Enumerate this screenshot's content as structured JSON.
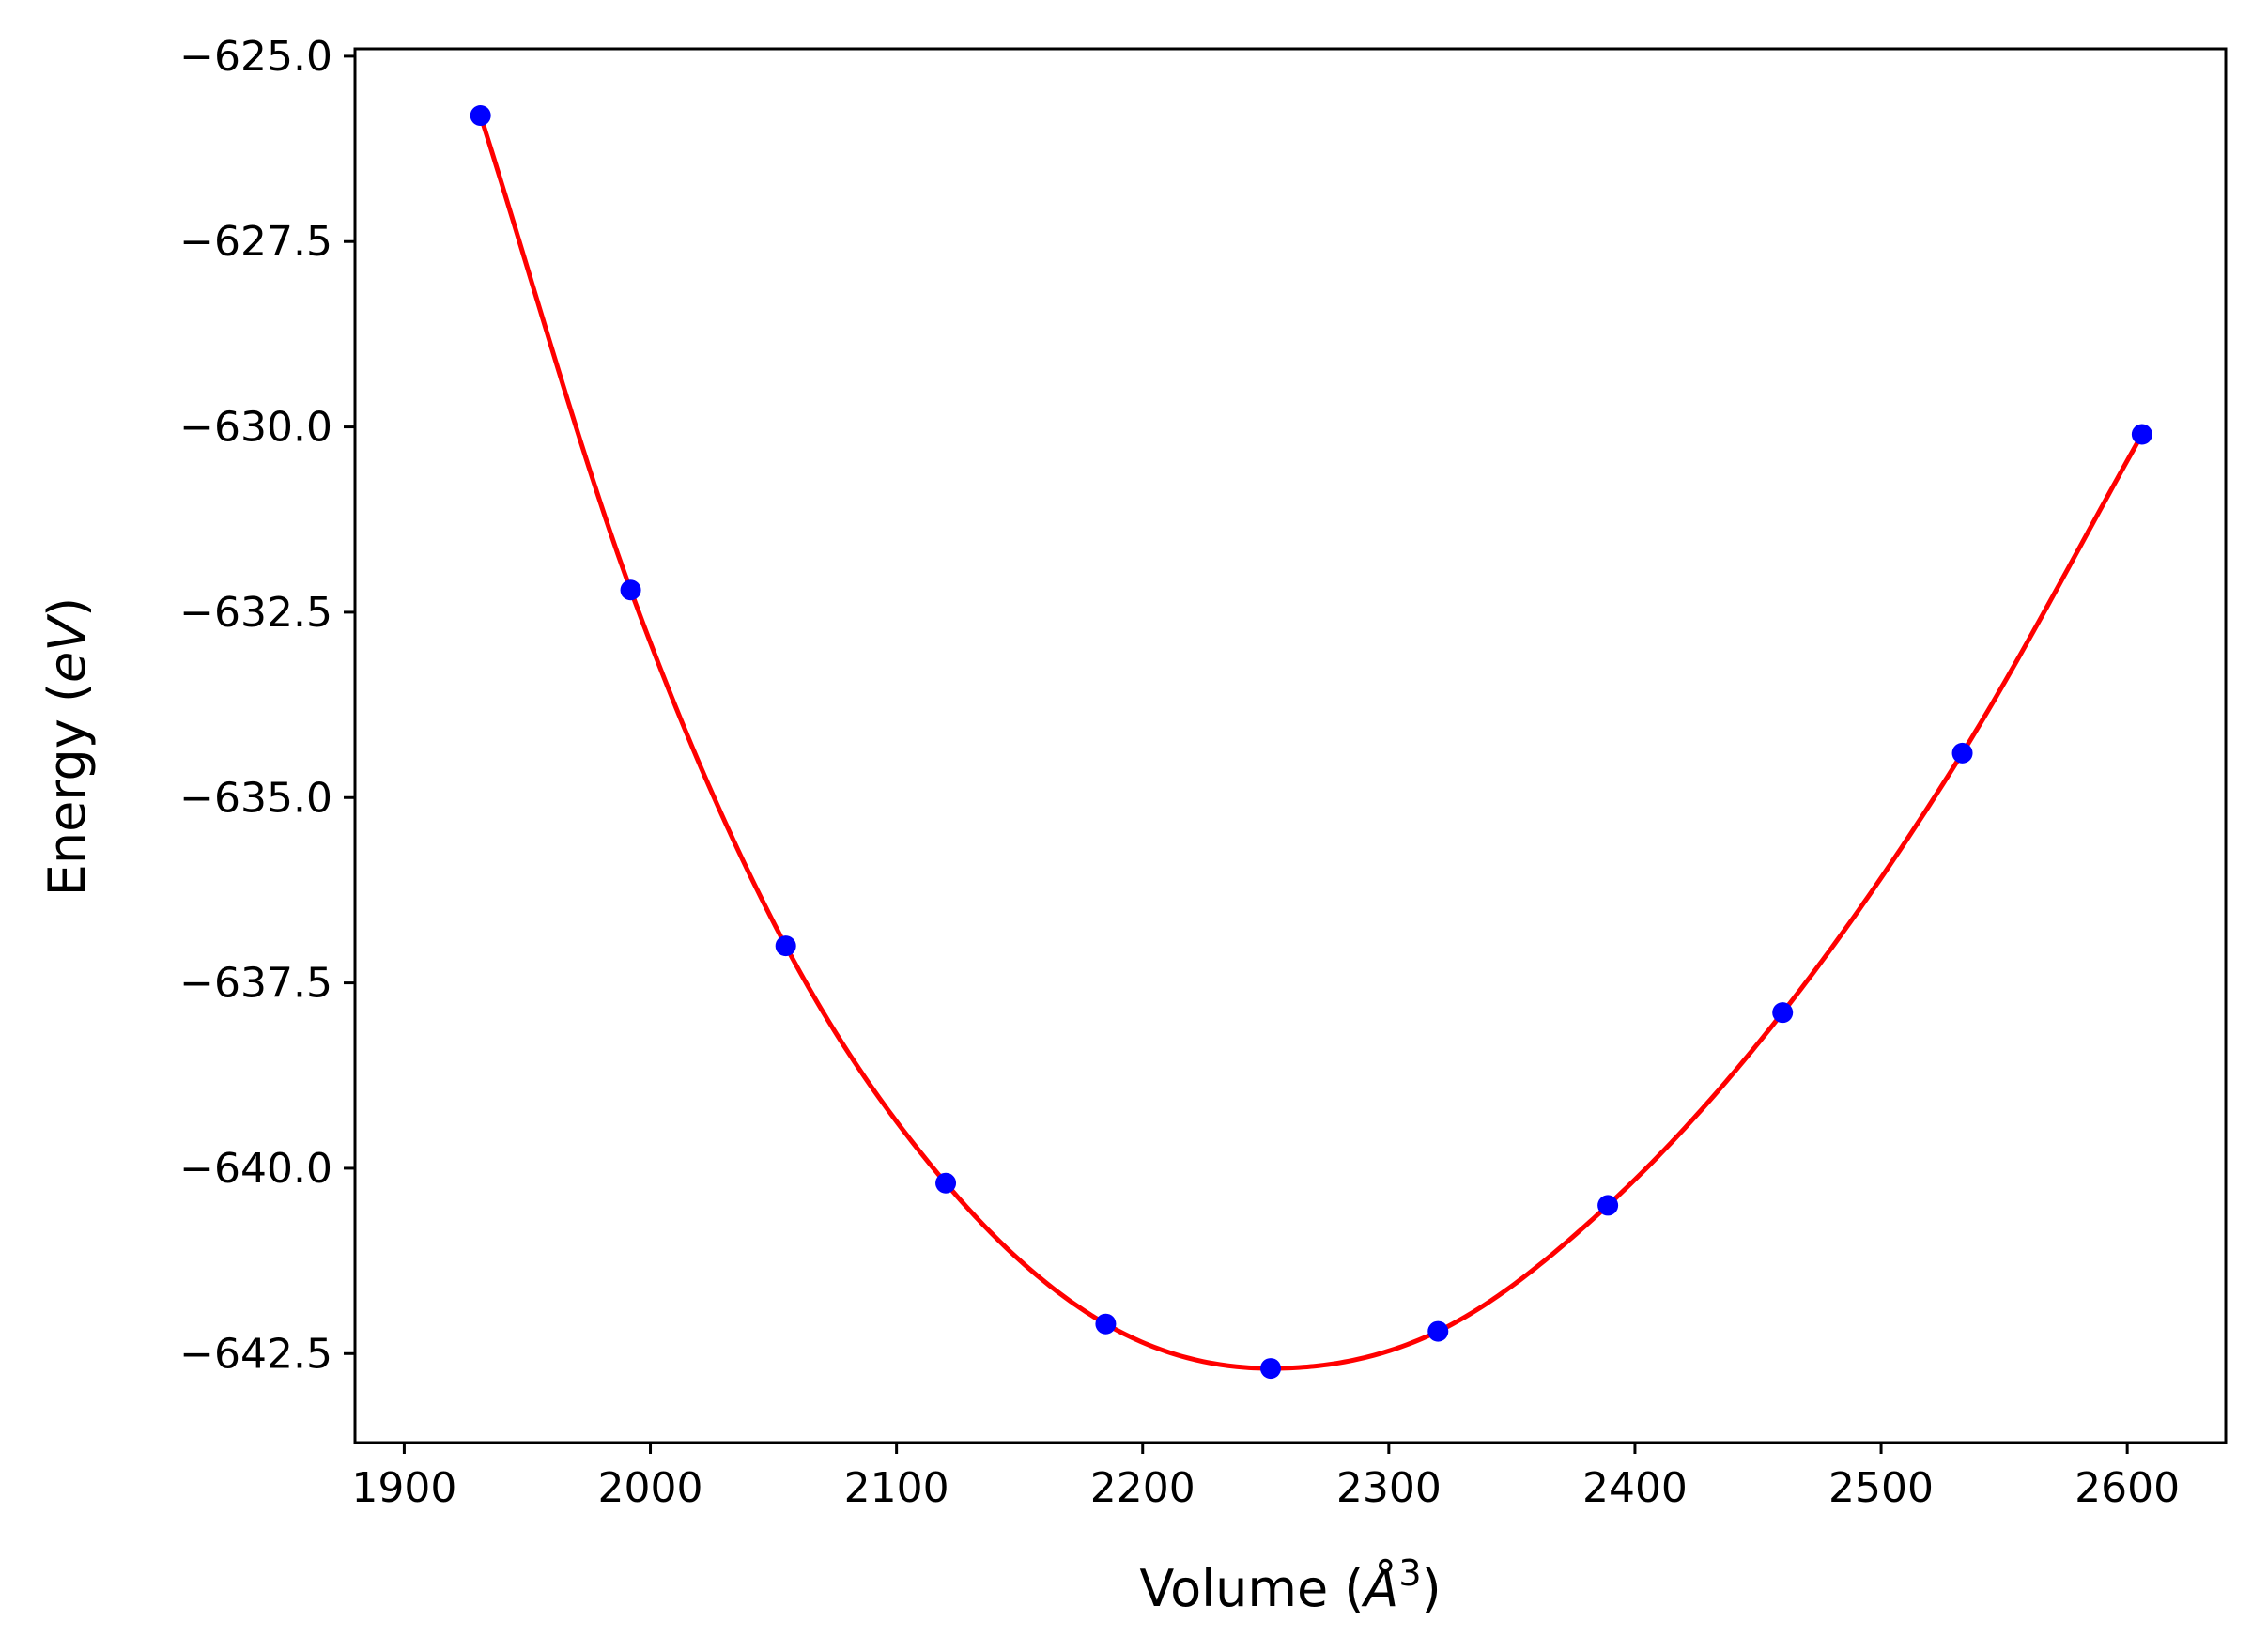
{
  "chart_data": {
    "type": "scatter",
    "title": "",
    "xlabel": "Volume ($\\mathring{A}^3$)",
    "xlabel_parts": {
      "prefix": "Volume (",
      "symbol": "Å",
      "superscript": "3",
      "suffix": ")"
    },
    "ylabel": "Energy ($eV$)",
    "ylabel_parts": {
      "prefix": "Energy (",
      "italic": "eV",
      "suffix": ")"
    },
    "xlim": [
      1880,
      2640
    ],
    "ylim": [
      -643.7,
      -624.9
    ],
    "x_ticks": [
      1900,
      2000,
      2100,
      2200,
      2300,
      2400,
      2500,
      2600
    ],
    "x_tick_labels": [
      "1900",
      "2000",
      "2100",
      "2200",
      "2300",
      "2400",
      "2500",
      "2600"
    ],
    "y_ticks": [
      -625.0,
      -627.5,
      -630.0,
      -632.5,
      -635.0,
      -637.5,
      -640.0,
      -642.5
    ],
    "y_tick_labels": [
      "−625.0",
      "−627.5",
      "−630.0",
      "−632.5",
      "−635.0",
      "−637.5",
      "−640.0",
      "−642.5"
    ],
    "grid": false,
    "legend": "none",
    "series": [
      {
        "kind": "points",
        "color": "#0000ff",
        "x": [
          1931,
          1992,
          2055,
          2120,
          2185,
          2252,
          2320,
          2389,
          2460,
          2533,
          2606
        ],
        "y": [
          -625.8,
          -632.2,
          -637.0,
          -640.2,
          -642.1,
          -642.7,
          -642.2,
          -640.5,
          -637.9,
          -634.4,
          -630.1
        ]
      },
      {
        "kind": "fit-line",
        "color": "#ff0000",
        "x_range": [
          1931,
          2606
        ]
      }
    ]
  }
}
